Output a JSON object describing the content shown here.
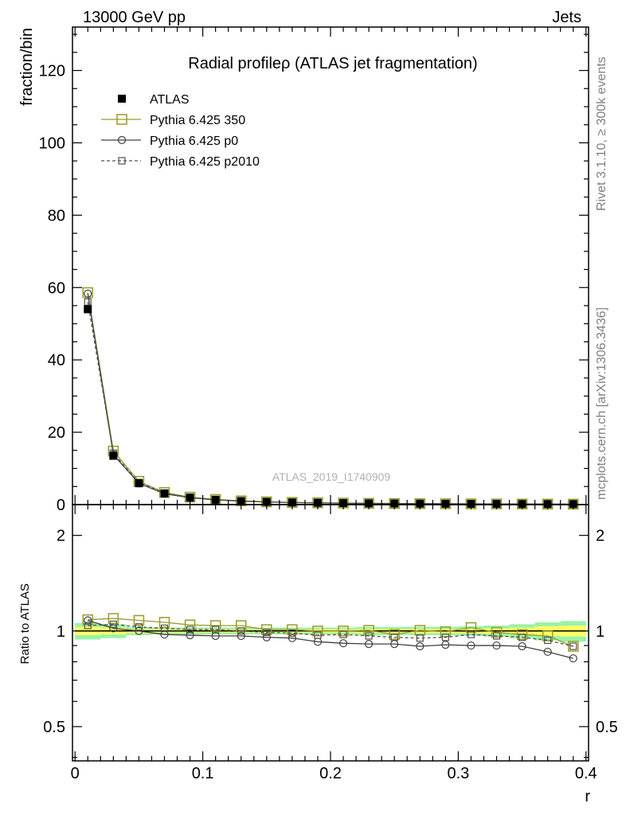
{
  "header": {
    "left": "13000 GeV pp",
    "right": "Jets"
  },
  "side_labels": {
    "rivet": "Rivet 3.1.10, ≥ 300k events",
    "mcplots": "mcplots.cern.ch [arXiv:1306.3436]"
  },
  "watermark": "ATLAS_2019_I1740909",
  "chart_data": {
    "type": "line",
    "title": "Radial profileρ (ATLAS jet fragmentation)",
    "xlabel": "r",
    "ylabel": "fraction/bin",
    "ratio_ylabel": "Ratio to ATLAS",
    "xlim": [
      -0.002,
      0.402
    ],
    "ylim": [
      0,
      132
    ],
    "ratio_ylim": [
      0.39,
      2.5
    ],
    "ratio_log": true,
    "x_ticks": [
      "0",
      "0.1",
      "0.2",
      "0.3",
      "0.4"
    ],
    "y_ticks": [
      "0",
      "20",
      "40",
      "60",
      "80",
      "100",
      "120"
    ],
    "ratio_ticks": [
      "0.5",
      "1",
      "2"
    ],
    "x": [
      0.01,
      0.03,
      0.05,
      0.07,
      0.09,
      0.11,
      0.13,
      0.15,
      0.17,
      0.19,
      0.21,
      0.23,
      0.25,
      0.27,
      0.29,
      0.31,
      0.33,
      0.35,
      0.37,
      0.39
    ],
    "series": [
      {
        "name": "ATLAS",
        "values": [
          54.0,
          13.5,
          5.9,
          3.1,
          1.95,
          1.35,
          0.98,
          0.75,
          0.6,
          0.5,
          0.42,
          0.36,
          0.31,
          0.27,
          0.24,
          0.21,
          0.19,
          0.17,
          0.15,
          0.14
        ],
        "ratio": [
          1,
          1,
          1,
          1,
          1,
          1,
          1,
          1,
          1,
          1,
          1,
          1,
          1,
          1,
          1,
          1,
          1,
          1,
          1,
          1
        ],
        "color": "#000000",
        "marker": "square-filled"
      },
      {
        "name": "Pythia 6.425 350",
        "values": [
          58.6,
          14.8,
          6.45,
          3.34,
          2.06,
          1.43,
          1.03,
          0.76,
          0.61,
          0.5,
          0.42,
          0.36,
          0.3,
          0.27,
          0.24,
          0.21,
          0.19,
          0.165,
          0.145,
          0.125
        ],
        "ratio": [
          1.085,
          1.095,
          1.08,
          1.065,
          1.045,
          1.04,
          1.04,
          1.01,
          1.01,
          1.0,
          1.0,
          1.005,
          0.975,
          1.005,
          0.995,
          1.025,
          0.99,
          0.975,
          0.965,
          0.895
        ],
        "color": "#9a9a2a",
        "marker": "square-open-large"
      },
      {
        "name": "Pythia 6.425 p0",
        "values": [
          58.3,
          13.8,
          5.9,
          3.0,
          1.89,
          1.3,
          0.94,
          0.71,
          0.57,
          0.46,
          0.385,
          0.325,
          0.28,
          0.24,
          0.215,
          0.19,
          0.172,
          0.153,
          0.13,
          0.115
        ],
        "ratio": [
          1.08,
          1.02,
          1.0,
          0.975,
          0.97,
          0.965,
          0.965,
          0.955,
          0.95,
          0.925,
          0.915,
          0.91,
          0.91,
          0.895,
          0.905,
          0.9,
          0.9,
          0.895,
          0.86,
          0.82
        ],
        "color": "#404040",
        "marker": "circle-open"
      },
      {
        "name": "Pythia 6.425 p2010",
        "values": [
          56.0,
          14.2,
          6.1,
          3.18,
          1.98,
          1.37,
          0.98,
          0.74,
          0.59,
          0.48,
          0.41,
          0.35,
          0.3,
          0.26,
          0.23,
          0.205,
          0.185,
          0.165,
          0.14,
          0.125
        ],
        "ratio": [
          1.04,
          1.05,
          1.03,
          1.02,
          1.01,
          1.01,
          1.0,
          0.99,
          0.985,
          0.97,
          0.975,
          0.965,
          0.955,
          0.95,
          0.955,
          0.975,
          0.965,
          0.955,
          0.935,
          0.895
        ],
        "color": "#505050",
        "marker": "square-open-dashed"
      }
    ],
    "ratio_band": {
      "stat_halfwidth": [
        0.03,
        0.025,
        0.015,
        0.012,
        0.012,
        0.012,
        0.012,
        0.012,
        0.012,
        0.012,
        0.012,
        0.015,
        0.015,
        0.015,
        0.015,
        0.018,
        0.02,
        0.025,
        0.035,
        0.04
      ],
      "total_halfwidth": [
        0.06,
        0.05,
        0.03,
        0.025,
        0.025,
        0.025,
        0.025,
        0.025,
        0.025,
        0.025,
        0.025,
        0.03,
        0.03,
        0.03,
        0.03,
        0.035,
        0.04,
        0.05,
        0.065,
        0.075
      ],
      "inner_color": "#ffff66",
      "outer_color": "#99f2a8"
    }
  }
}
